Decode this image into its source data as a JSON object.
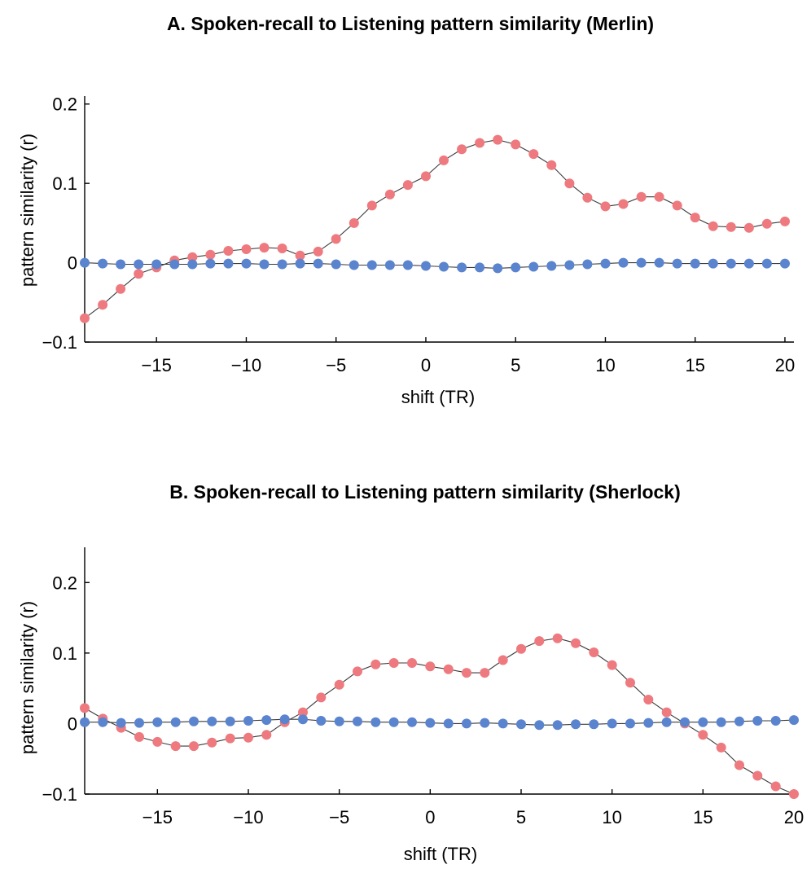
{
  "chart_data": [
    {
      "type": "scatter",
      "title": "A. Spoken-recall to Listening pattern similarity (Merlin)",
      "xlabel": "shift (TR)",
      "ylabel": "pattern similarity (r)",
      "xlim": [
        -19,
        20.5
      ],
      "ylim": [
        -0.1,
        0.21
      ],
      "xticks": [
        -15,
        -10,
        -5,
        0,
        5,
        10,
        15,
        20
      ],
      "xtick_labels": [
        "−15",
        "−10",
        "−5",
        "0",
        "5",
        "10",
        "15",
        "20"
      ],
      "yticks": [
        -0.1,
        0,
        0.1,
        0.2
      ],
      "ytick_labels": [
        "−0.1",
        "0",
        "0.1",
        "0.2"
      ],
      "grid": false,
      "x": [
        -19,
        -18,
        -17,
        -16,
        -15,
        -14,
        -13,
        -12,
        -11,
        -10,
        -9,
        -8,
        -7,
        -6,
        -5,
        -4,
        -3,
        -2,
        -1,
        0,
        1,
        2,
        3,
        4,
        5,
        6,
        7,
        8,
        9,
        10,
        11,
        12,
        13,
        14,
        15,
        16,
        17,
        18,
        19,
        20
      ],
      "series": [
        {
          "color": "#ee7a7f",
          "connected": true,
          "values": [
            -0.07,
            -0.053,
            -0.033,
            -0.014,
            -0.006,
            0.003,
            0.007,
            0.01,
            0.015,
            0.017,
            0.019,
            0.018,
            0.009,
            0.014,
            0.03,
            0.05,
            0.072,
            0.086,
            0.098,
            0.109,
            0.129,
            0.143,
            0.151,
            0.155,
            0.149,
            0.137,
            0.123,
            0.1,
            0.082,
            0.071,
            0.074,
            0.083,
            0.083,
            0.072,
            0.057,
            0.046,
            0.045,
            0.044,
            0.049,
            0.052
          ]
        },
        {
          "color": "#5b84cf",
          "connected": true,
          "values": [
            0,
            -0.001,
            -0.002,
            -0.002,
            -0.002,
            -0.002,
            -0.002,
            -0.001,
            -0.001,
            -0.001,
            -0.002,
            -0.002,
            -0.001,
            -0.001,
            -0.002,
            -0.003,
            -0.003,
            -0.003,
            -0.003,
            -0.004,
            -0.005,
            -0.006,
            -0.006,
            -0.007,
            -0.006,
            -0.005,
            -0.004,
            -0.003,
            -0.002,
            -0.001,
            0,
            0,
            0,
            -0.001,
            -0.001,
            -0.001,
            -0.001,
            -0.001,
            -0.001,
            -0.001
          ]
        }
      ]
    },
    {
      "type": "scatter",
      "title": "B. Spoken-recall to Listening pattern similarity (Sherlock)",
      "xlabel": "shift (TR)",
      "ylabel": "pattern similarity (r)",
      "xlim": [
        -19,
        20
      ],
      "ylim": [
        -0.1,
        0.25
      ],
      "xticks": [
        -15,
        -10,
        -5,
        0,
        5,
        10,
        15,
        20
      ],
      "xtick_labels": [
        "−15",
        "−10",
        "−5",
        "0",
        "5",
        "10",
        "15",
        "20"
      ],
      "yticks": [
        -0.1,
        0,
        0.1,
        0.2
      ],
      "ytick_labels": [
        "−0.1",
        "0",
        "0.1",
        "0.2"
      ],
      "grid": false,
      "x": [
        -19,
        -18,
        -17,
        -16,
        -15,
        -14,
        -13,
        -12,
        -11,
        -10,
        -9,
        -8,
        -7,
        -6,
        -5,
        -4,
        -3,
        -2,
        -1,
        0,
        1,
        2,
        3,
        4,
        5,
        6,
        7,
        8,
        9,
        10,
        11,
        12,
        13,
        14,
        15,
        16,
        17,
        18,
        19,
        20
      ],
      "series": [
        {
          "color": "#ee7a7f",
          "connected": true,
          "values": [
            0.022,
            0.007,
            -0.006,
            -0.019,
            -0.026,
            -0.032,
            -0.032,
            -0.027,
            -0.021,
            -0.02,
            -0.016,
            0.002,
            0.016,
            0.037,
            0.055,
            0.074,
            0.084,
            0.086,
            0.086,
            0.081,
            0.077,
            0.072,
            0.072,
            0.09,
            0.106,
            0.117,
            0.121,
            0.114,
            0.101,
            0.083,
            0.058,
            0.034,
            0.016,
            0.0,
            -0.016,
            -0.034,
            -0.059,
            -0.074,
            -0.089,
            -0.1
          ]
        },
        {
          "color": "#5b84cf",
          "connected": true,
          "values": [
            0.002,
            0.002,
            0.001,
            0.001,
            0.002,
            0.002,
            0.003,
            0.003,
            0.003,
            0.004,
            0.005,
            0.006,
            0.006,
            0.004,
            0.003,
            0.003,
            0.002,
            0.002,
            0.002,
            0.001,
            0,
            0,
            0.001,
            0,
            -0.001,
            -0.002,
            -0.002,
            -0.001,
            -0.001,
            0,
            0,
            0.001,
            0.002,
            0.002,
            0.002,
            0.002,
            0.003,
            0.004,
            0.004,
            0.005
          ]
        }
      ]
    }
  ]
}
